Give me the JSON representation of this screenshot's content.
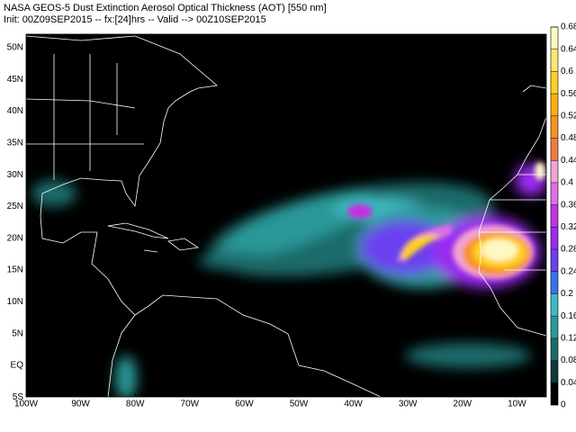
{
  "header": {
    "line1": "NASA GEOS-5 Dust Extinction Aerosol Optical Thickness (AOT) [550 nm]",
    "line2": "Init: 00Z09SEP2015 -- fx:[24]hrs -- Valid --> 00Z10SEP2015"
  },
  "map": {
    "lat_labels": [
      "50N",
      "45N",
      "40N",
      "35N",
      "30N",
      "25N",
      "20N",
      "15N",
      "10N",
      "5N",
      "EQ",
      "5S"
    ],
    "lon_labels": [
      "100W",
      "90W",
      "80W",
      "70W",
      "60W",
      "50W",
      "40W",
      "30W",
      "20W",
      "10W"
    ]
  },
  "colorbar": {
    "ticks": [
      0,
      0.04,
      0.08,
      0.12,
      0.16,
      0.2,
      0.24,
      0.28,
      0.32,
      0.36,
      0.4,
      0.44,
      0.48,
      0.52,
      0.56,
      0.6,
      0.64,
      0.68
    ],
    "colors": [
      "#000000",
      "#0e3a3a",
      "#1b6b6b",
      "#2a9898",
      "#40b8c0",
      "#3a70e8",
      "#6a40f0",
      "#9a2cf0",
      "#c432e2",
      "#e070e8",
      "#f2a4d2",
      "#f07a42",
      "#f89222",
      "#fcb012",
      "#fdd024",
      "#fee874",
      "#fff8c4"
    ]
  }
}
